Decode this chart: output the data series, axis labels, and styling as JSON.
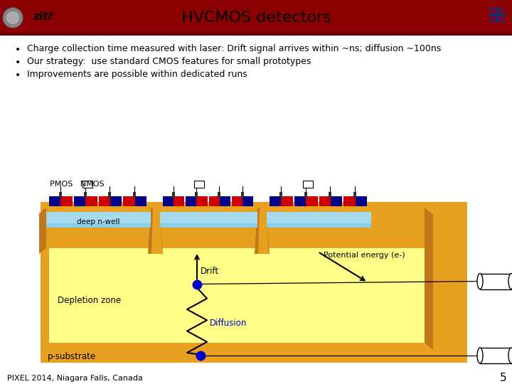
{
  "title": "HVCMOS detectors",
  "header_bg": "#8B0000",
  "header_line_bg": "#6B0000",
  "bullet_points": [
    "Charge collection time measured with laser: Drift signal arrives within ~ns; diffusion ~100ns",
    "Our strategy:  use standard CMOS features for small prototypes",
    "Improvements are possible within dedicated runs"
  ],
  "footer_text": "PIXEL 2014, Niagara Falls, Canada",
  "page_number": "5",
  "bg_color": "#FFFFFF",
  "orange": "#E8A020",
  "orange_dark": "#C07818",
  "orange_side": "#CC8800",
  "yellow_light": "#FFFF88",
  "cyan_cell": "#87CEEB",
  "cyan_light": "#C5E8F0",
  "red_pixel": "#CC0000",
  "blue_pixel": "#000088",
  "dark_contact": "#333333",
  "blue_dot": "#0000CC"
}
